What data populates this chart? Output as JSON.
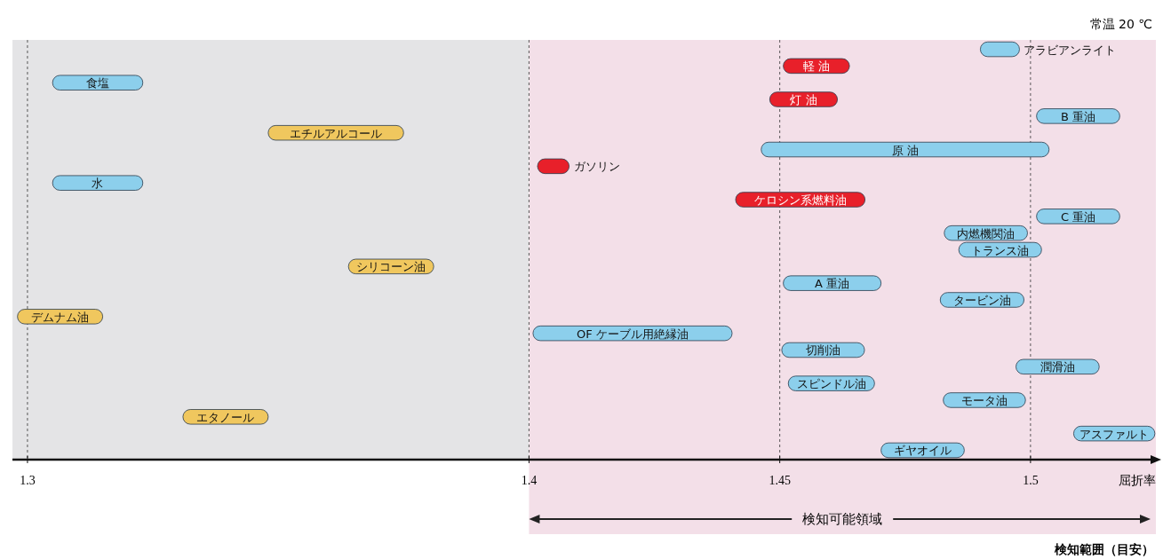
{
  "chart_data": {
    "type": "bar",
    "orientation": "horizontal",
    "xlabel": "屈折率",
    "categories": [
      "アラビアンライト",
      "軽 油",
      "食塩",
      "灯 油",
      "B 重油",
      "エチルアルコール",
      "原 油",
      "ガソリン",
      "水",
      "ケロシン系燃料油",
      "C 重油",
      "内燃機関油",
      "トランス油",
      "シリコーン油",
      "A 重油",
      "タービン油",
      "デムナム油",
      "OF ケーブル用絶縁油",
      "切削油",
      "潤滑油",
      "スピンドル油",
      "モータ油",
      "エタノール",
      "アスファルト",
      "ギヤオイル"
    ],
    "base": [
      1.49,
      1.4507,
      1.305,
      1.448,
      1.5012,
      1.348,
      1.4463,
      1.4017,
      1.305,
      1.4412,
      1.5012,
      1.4828,
      1.4857,
      1.364,
      1.4507,
      1.482,
      1.298,
      1.4008,
      1.4504,
      1.4971,
      1.4517,
      1.4826,
      1.331,
      1.5086,
      1.4702
    ],
    "values": [
      0.0078,
      0.0132,
      0.018,
      0.0135,
      0.0166,
      0.027,
      0.0574,
      0.0063,
      0.018,
      0.0258,
      0.0166,
      0.0166,
      0.0165,
      0.017,
      0.0195,
      0.0167,
      0.017,
      0.0397,
      0.0165,
      0.0166,
      0.0172,
      0.0164,
      0.017,
      0.0162,
      0.0166
    ],
    "colors": [
      "#8ccfec",
      "#e8202a",
      "#8ccfec",
      "#e8202a",
      "#8ccfec",
      "#f0c75e",
      "#8ccfec",
      "#e8202a",
      "#8ccfec",
      "#e8202a",
      "#8ccfec",
      "#8ccfec",
      "#8ccfec",
      "#f0c75e",
      "#8ccfec",
      "#8ccfec",
      "#f0c75e",
      "#8ccfec",
      "#8ccfec",
      "#8ccfec",
      "#8ccfec",
      "#8ccfec",
      "#f0c75e",
      "#8ccfec",
      "#8ccfec"
    ],
    "xlim": [
      1.297,
      1.525
    ],
    "xticks": [
      1.3,
      1.4,
      1.45,
      1.5
    ],
    "tick_labels": "x",
    "grid": "x",
    "bands": [
      {
        "axis": "x",
        "from": 1.297,
        "to": 1.4,
        "color": "#e4e4e6"
      },
      {
        "axis": "x",
        "from": 1.4,
        "to": 1.525,
        "color": "#f3dfe8",
        "label": "検知可能領域"
      }
    ],
    "annotations": [
      "常温 20 ℃",
      "検知範囲（目安）"
    ]
  }
}
